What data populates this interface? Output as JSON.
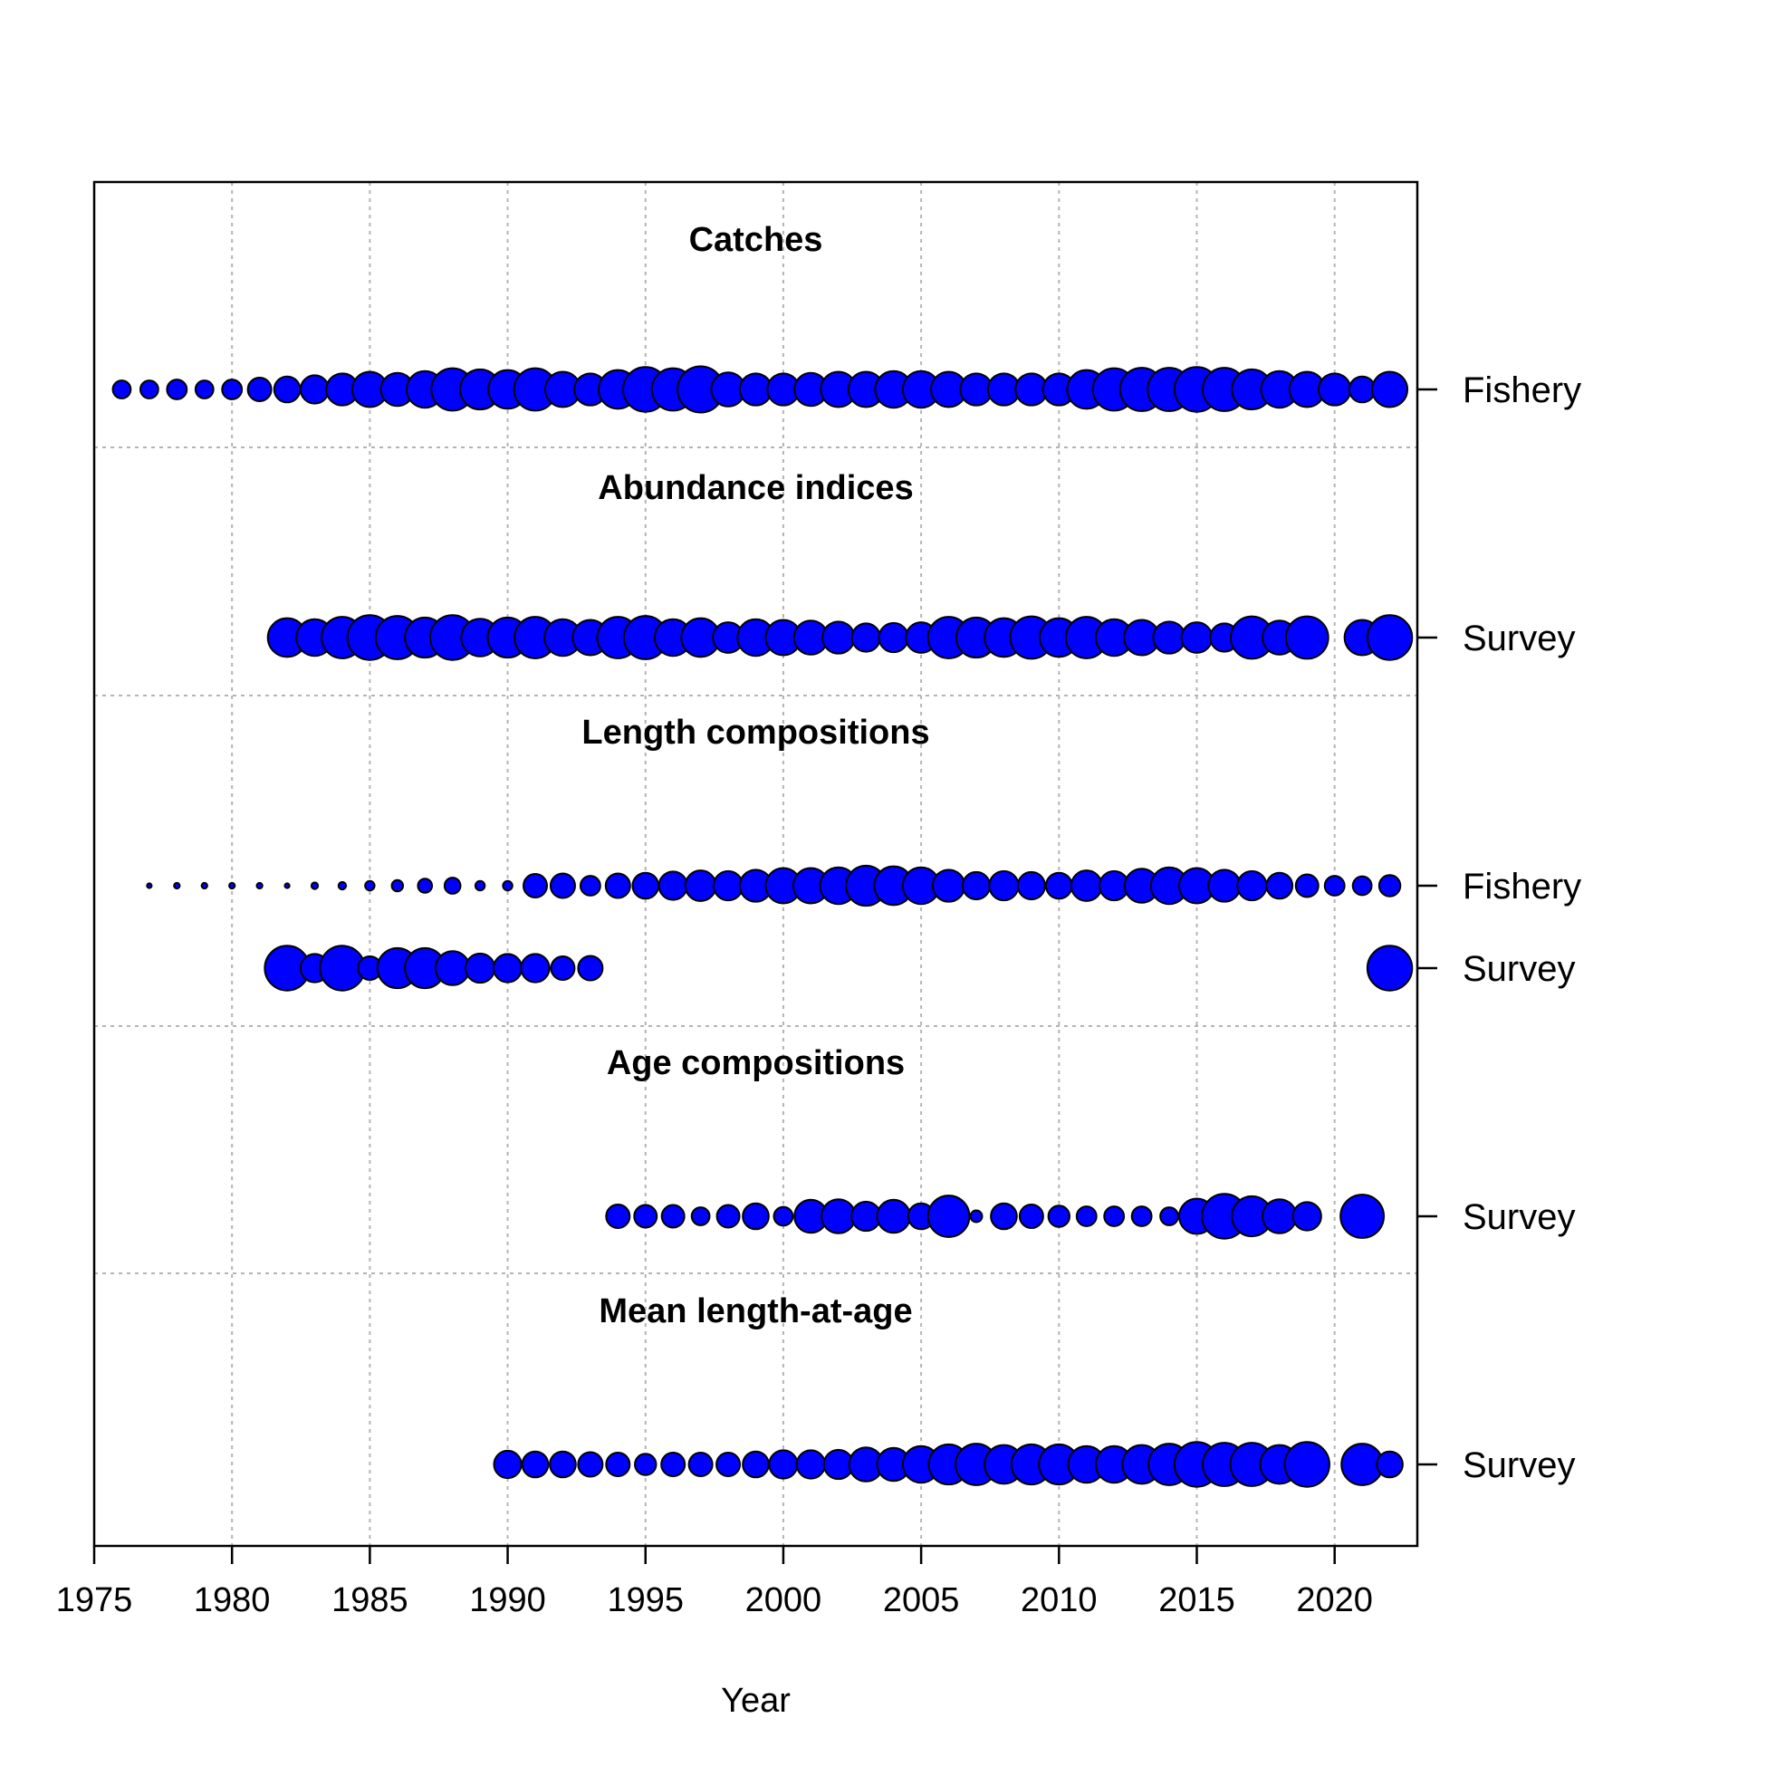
{
  "chart_data": {
    "type": "scatter",
    "xlabel": "Year",
    "xlim": [
      1975,
      2023
    ],
    "x_ticks": [
      "1975",
      "1980",
      "1985",
      "1990",
      "1995",
      "2000",
      "2005",
      "2010",
      "2015",
      "2020"
    ],
    "grid": true,
    "marker_color": "#0000ff",
    "sections": [
      {
        "title": "Catches",
        "series": [
          {
            "name": "Fishery",
            "points": [
              [
                1976,
                0.38
              ],
              [
                1977,
                0.38
              ],
              [
                1978,
                0.42
              ],
              [
                1979,
                0.38
              ],
              [
                1980,
                0.42
              ],
              [
                1981,
                0.5
              ],
              [
                1982,
                0.55
              ],
              [
                1983,
                0.6
              ],
              [
                1984,
                0.68
              ],
              [
                1985,
                0.75
              ],
              [
                1986,
                0.7
              ],
              [
                1987,
                0.78
              ],
              [
                1988,
                0.9
              ],
              [
                1989,
                0.85
              ],
              [
                1990,
                0.82
              ],
              [
                1991,
                0.9
              ],
              [
                1992,
                0.75
              ],
              [
                1993,
                0.68
              ],
              [
                1994,
                0.82
              ],
              [
                1995,
                0.95
              ],
              [
                1996,
                0.9
              ],
              [
                1997,
                0.98
              ],
              [
                1998,
                0.72
              ],
              [
                1999,
                0.68
              ],
              [
                2000,
                0.68
              ],
              [
                2001,
                0.7
              ],
              [
                2002,
                0.75
              ],
              [
                2003,
                0.75
              ],
              [
                2004,
                0.78
              ],
              [
                2005,
                0.78
              ],
              [
                2006,
                0.75
              ],
              [
                2007,
                0.68
              ],
              [
                2008,
                0.68
              ],
              [
                2009,
                0.68
              ],
              [
                2010,
                0.68
              ],
              [
                2011,
                0.82
              ],
              [
                2012,
                0.9
              ],
              [
                2013,
                0.92
              ],
              [
                2014,
                0.92
              ],
              [
                2015,
                0.95
              ],
              [
                2016,
                0.92
              ],
              [
                2017,
                0.85
              ],
              [
                2018,
                0.78
              ],
              [
                2019,
                0.75
              ],
              [
                2020,
                0.68
              ],
              [
                2021,
                0.55
              ],
              [
                2022,
                0.75
              ]
            ]
          }
        ]
      },
      {
        "title": "Abundance indices",
        "series": [
          {
            "name": "Survey",
            "points": [
              [
                1982,
                0.82
              ],
              [
                1983,
                0.78
              ],
              [
                1984,
                0.88
              ],
              [
                1985,
                0.95
              ],
              [
                1986,
                0.92
              ],
              [
                1987,
                0.85
              ],
              [
                1988,
                0.95
              ],
              [
                1989,
                0.8
              ],
              [
                1990,
                0.85
              ],
              [
                1991,
                0.88
              ],
              [
                1992,
                0.78
              ],
              [
                1993,
                0.75
              ],
              [
                1994,
                0.88
              ],
              [
                1995,
                0.92
              ],
              [
                1996,
                0.78
              ],
              [
                1997,
                0.82
              ],
              [
                1998,
                0.65
              ],
              [
                1999,
                0.78
              ],
              [
                2000,
                0.75
              ],
              [
                2001,
                0.72
              ],
              [
                2002,
                0.68
              ],
              [
                2003,
                0.6
              ],
              [
                2004,
                0.62
              ],
              [
                2005,
                0.65
              ],
              [
                2006,
                0.88
              ],
              [
                2007,
                0.85
              ],
              [
                2008,
                0.82
              ],
              [
                2009,
                0.9
              ],
              [
                2010,
                0.82
              ],
              [
                2011,
                0.88
              ],
              [
                2012,
                0.78
              ],
              [
                2013,
                0.75
              ],
              [
                2014,
                0.68
              ],
              [
                2015,
                0.65
              ],
              [
                2016,
                0.6
              ],
              [
                2017,
                0.9
              ],
              [
                2018,
                0.72
              ],
              [
                2019,
                0.9
              ],
              [
                2021,
                0.75
              ],
              [
                2022,
                0.95
              ]
            ]
          }
        ]
      },
      {
        "title": "Length compositions",
        "series": [
          {
            "name": "Fishery",
            "points": [
              [
                1977,
                0.1
              ],
              [
                1978,
                0.12
              ],
              [
                1979,
                0.12
              ],
              [
                1980,
                0.12
              ],
              [
                1981,
                0.12
              ],
              [
                1982,
                0.1
              ],
              [
                1983,
                0.14
              ],
              [
                1984,
                0.16
              ],
              [
                1985,
                0.2
              ],
              [
                1986,
                0.24
              ],
              [
                1987,
                0.3
              ],
              [
                1988,
                0.34
              ],
              [
                1989,
                0.2
              ],
              [
                1990,
                0.2
              ],
              [
                1991,
                0.5
              ],
              [
                1992,
                0.52
              ],
              [
                1993,
                0.42
              ],
              [
                1994,
                0.52
              ],
              [
                1995,
                0.55
              ],
              [
                1996,
                0.6
              ],
              [
                1997,
                0.65
              ],
              [
                1998,
                0.62
              ],
              [
                1999,
                0.68
              ],
              [
                2000,
                0.75
              ],
              [
                2001,
                0.75
              ],
              [
                2002,
                0.78
              ],
              [
                2003,
                0.85
              ],
              [
                2004,
                0.82
              ],
              [
                2005,
                0.78
              ],
              [
                2006,
                0.68
              ],
              [
                2007,
                0.58
              ],
              [
                2008,
                0.62
              ],
              [
                2009,
                0.58
              ],
              [
                2010,
                0.55
              ],
              [
                2011,
                0.65
              ],
              [
                2012,
                0.62
              ],
              [
                2013,
                0.72
              ],
              [
                2014,
                0.78
              ],
              [
                2015,
                0.75
              ],
              [
                2016,
                0.68
              ],
              [
                2017,
                0.62
              ],
              [
                2018,
                0.55
              ],
              [
                2019,
                0.48
              ],
              [
                2020,
                0.42
              ],
              [
                2021,
                0.4
              ],
              [
                2022,
                0.45
              ]
            ]
          },
          {
            "name": "Survey",
            "points": [
              [
                1982,
                0.95
              ],
              [
                1983,
                0.6
              ],
              [
                1984,
                0.95
              ],
              [
                1985,
                0.5
              ],
              [
                1986,
                0.85
              ],
              [
                1987,
                0.85
              ],
              [
                1988,
                0.72
              ],
              [
                1989,
                0.62
              ],
              [
                1990,
                0.6
              ],
              [
                1991,
                0.6
              ],
              [
                1992,
                0.5
              ],
              [
                1993,
                0.52
              ],
              [
                2022,
                0.95
              ]
            ]
          }
        ]
      },
      {
        "title": "Age compositions",
        "series": [
          {
            "name": "Survey",
            "points": [
              [
                1994,
                0.5
              ],
              [
                1995,
                0.48
              ],
              [
                1996,
                0.48
              ],
              [
                1997,
                0.38
              ],
              [
                1998,
                0.48
              ],
              [
                1999,
                0.55
              ],
              [
                2000,
                0.4
              ],
              [
                2001,
                0.7
              ],
              [
                2002,
                0.72
              ],
              [
                2003,
                0.62
              ],
              [
                2004,
                0.7
              ],
              [
                2005,
                0.55
              ],
              [
                2006,
                0.88
              ],
              [
                2007,
                0.25
              ],
              [
                2008,
                0.55
              ],
              [
                2009,
                0.5
              ],
              [
                2010,
                0.45
              ],
              [
                2011,
                0.42
              ],
              [
                2012,
                0.42
              ],
              [
                2013,
                0.42
              ],
              [
                2014,
                0.38
              ],
              [
                2015,
                0.75
              ],
              [
                2016,
                0.95
              ],
              [
                2017,
                0.85
              ],
              [
                2018,
                0.72
              ],
              [
                2019,
                0.6
              ],
              [
                2021,
                0.92
              ]
            ]
          }
        ]
      },
      {
        "title": "Mean length-at-age",
        "series": [
          {
            "name": "Survey",
            "points": [
              [
                1990,
                0.58
              ],
              [
                1991,
                0.55
              ],
              [
                1992,
                0.55
              ],
              [
                1993,
                0.52
              ],
              [
                1994,
                0.5
              ],
              [
                1995,
                0.45
              ],
              [
                1996,
                0.5
              ],
              [
                1997,
                0.5
              ],
              [
                1998,
                0.5
              ],
              [
                1999,
                0.55
              ],
              [
                2000,
                0.6
              ],
              [
                2001,
                0.6
              ],
              [
                2002,
                0.62
              ],
              [
                2003,
                0.72
              ],
              [
                2004,
                0.7
              ],
              [
                2005,
                0.78
              ],
              [
                2006,
                0.85
              ],
              [
                2007,
                0.88
              ],
              [
                2008,
                0.82
              ],
              [
                2009,
                0.85
              ],
              [
                2010,
                0.85
              ],
              [
                2011,
                0.78
              ],
              [
                2012,
                0.78
              ],
              [
                2013,
                0.82
              ],
              [
                2014,
                0.88
              ],
              [
                2015,
                0.95
              ],
              [
                2016,
                0.92
              ],
              [
                2017,
                0.92
              ],
              [
                2018,
                0.82
              ],
              [
                2019,
                0.95
              ],
              [
                2021,
                0.88
              ],
              [
                2022,
                0.55
              ]
            ]
          }
        ]
      }
    ]
  }
}
